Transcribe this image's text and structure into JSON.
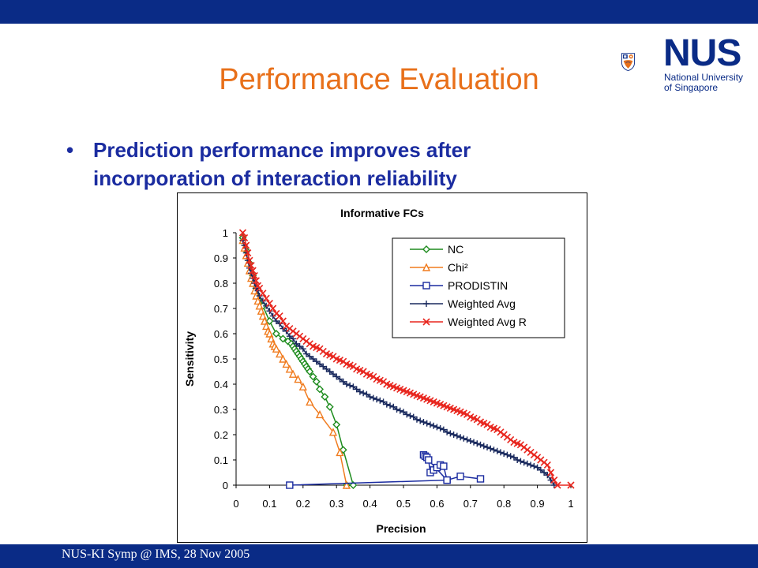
{
  "slide": {
    "title": "Performance Evaluation",
    "bullet_symbol": "•",
    "bullet_text": "Prediction performance improves after incorporation of interaction reliability",
    "footer": "NUS-KI Symp @ IMS, 28 Nov 2005",
    "logo": {
      "name": "NUS",
      "line1": "National University",
      "line2": "of Singapore"
    },
    "colors": {
      "bar": "#0a2b86",
      "title": "#e8701a",
      "bullet": "#1b2ca0"
    }
  },
  "chart_data": {
    "type": "line",
    "title": "Informative FCs",
    "xlabel": "Precision",
    "ylabel": "Sensitivity",
    "xlim": [
      0,
      1
    ],
    "ylim": [
      0,
      1
    ],
    "xticks": [
      "0",
      "0.1",
      "0.2",
      "0.3",
      "0.4",
      "0.5",
      "0.6",
      "0.7",
      "0.8",
      "0.9",
      "1"
    ],
    "yticks": [
      "0",
      "0.1",
      "0.2",
      "0.3",
      "0.4",
      "0.5",
      "0.6",
      "0.7",
      "0.8",
      "0.9",
      "1"
    ],
    "grid": false,
    "legend_position": "top-right",
    "series": [
      {
        "name": "NC",
        "color": "#1e8c1e",
        "marker": "diamond",
        "x": [
          0.02,
          0.03,
          0.04,
          0.05,
          0.06,
          0.08,
          0.1,
          0.12,
          0.14,
          0.155,
          0.165,
          0.17,
          0.175,
          0.18,
          0.185,
          0.19,
          0.195,
          0.2,
          0.205,
          0.21,
          0.215,
          0.22,
          0.23,
          0.24,
          0.25,
          0.265,
          0.28,
          0.3,
          0.32,
          0.35,
          0.33
        ],
        "y": [
          0.98,
          0.93,
          0.88,
          0.83,
          0.78,
          0.71,
          0.65,
          0.6,
          0.58,
          0.57,
          0.56,
          0.55,
          0.54,
          0.53,
          0.52,
          0.51,
          0.5,
          0.49,
          0.48,
          0.47,
          0.46,
          0.45,
          0.43,
          0.41,
          0.38,
          0.35,
          0.31,
          0.24,
          0.14,
          0.0,
          0.0
        ]
      },
      {
        "name": "Chi²",
        "color": "#f07b1e",
        "marker": "triangle",
        "x": [
          0.02,
          0.025,
          0.03,
          0.035,
          0.04,
          0.045,
          0.05,
          0.055,
          0.06,
          0.065,
          0.07,
          0.075,
          0.08,
          0.085,
          0.09,
          0.095,
          0.1,
          0.105,
          0.11,
          0.115,
          0.12,
          0.13,
          0.14,
          0.15,
          0.16,
          0.17,
          0.185,
          0.2,
          0.22,
          0.25,
          0.29,
          0.31,
          0.33
        ],
        "y": [
          0.97,
          0.94,
          0.91,
          0.88,
          0.85,
          0.82,
          0.8,
          0.77,
          0.75,
          0.73,
          0.71,
          0.69,
          0.67,
          0.65,
          0.63,
          0.61,
          0.6,
          0.58,
          0.56,
          0.55,
          0.54,
          0.52,
          0.5,
          0.48,
          0.46,
          0.44,
          0.42,
          0.39,
          0.33,
          0.28,
          0.21,
          0.13,
          0.0
        ]
      },
      {
        "name": "PRODISTIN",
        "color": "#1b2ca0",
        "marker": "square",
        "x": [
          0.16,
          0.63,
          0.56,
          0.565,
          0.57,
          0.575,
          0.58,
          0.59,
          0.6,
          0.61,
          0.62,
          0.63,
          0.67,
          0.73
        ],
        "y": [
          0.0,
          0.02,
          0.12,
          0.115,
          0.11,
          0.1,
          0.05,
          0.06,
          0.07,
          0.08,
          0.075,
          0.02,
          0.035,
          0.025
        ]
      },
      {
        "name": "Weighted Avg",
        "color": "#1a2a5e",
        "marker": "plus",
        "x": [
          0.02,
          0.025,
          0.03,
          0.035,
          0.04,
          0.045,
          0.05,
          0.055,
          0.06,
          0.065,
          0.07,
          0.08,
          0.09,
          0.1,
          0.11,
          0.12,
          0.13,
          0.14,
          0.15,
          0.16,
          0.17,
          0.18,
          0.19,
          0.2,
          0.21,
          0.22,
          0.23,
          0.24,
          0.25,
          0.26,
          0.27,
          0.28,
          0.29,
          0.3,
          0.31,
          0.32,
          0.33,
          0.34,
          0.35,
          0.36,
          0.37,
          0.38,
          0.39,
          0.4,
          0.41,
          0.42,
          0.43,
          0.44,
          0.45,
          0.46,
          0.47,
          0.48,
          0.49,
          0.5,
          0.51,
          0.52,
          0.53,
          0.54,
          0.55,
          0.56,
          0.57,
          0.58,
          0.59,
          0.6,
          0.61,
          0.62,
          0.63,
          0.64,
          0.65,
          0.66,
          0.67,
          0.68,
          0.69,
          0.7,
          0.71,
          0.72,
          0.73,
          0.74,
          0.75,
          0.76,
          0.77,
          0.78,
          0.79,
          0.8,
          0.81,
          0.82,
          0.83,
          0.84,
          0.85,
          0.86,
          0.87,
          0.88,
          0.89,
          0.9,
          0.91,
          0.92,
          0.93,
          0.94,
          0.95
        ],
        "y": [
          0.97,
          0.95,
          0.92,
          0.89,
          0.86,
          0.84,
          0.82,
          0.8,
          0.78,
          0.77,
          0.75,
          0.73,
          0.71,
          0.69,
          0.67,
          0.65,
          0.64,
          0.62,
          0.61,
          0.59,
          0.58,
          0.56,
          0.55,
          0.54,
          0.52,
          0.51,
          0.5,
          0.49,
          0.48,
          0.47,
          0.46,
          0.45,
          0.44,
          0.43,
          0.42,
          0.41,
          0.4,
          0.395,
          0.39,
          0.38,
          0.37,
          0.365,
          0.36,
          0.35,
          0.345,
          0.34,
          0.335,
          0.33,
          0.32,
          0.315,
          0.31,
          0.3,
          0.295,
          0.29,
          0.28,
          0.275,
          0.27,
          0.26,
          0.255,
          0.25,
          0.245,
          0.24,
          0.235,
          0.23,
          0.225,
          0.22,
          0.21,
          0.205,
          0.2,
          0.195,
          0.19,
          0.185,
          0.18,
          0.175,
          0.17,
          0.165,
          0.16,
          0.155,
          0.15,
          0.145,
          0.14,
          0.135,
          0.13,
          0.125,
          0.12,
          0.115,
          0.11,
          0.1,
          0.095,
          0.09,
          0.085,
          0.08,
          0.075,
          0.07,
          0.06,
          0.05,
          0.04,
          0.02,
          0.0
        ]
      },
      {
        "name": "Weighted Avg R",
        "color": "#e8261e",
        "marker": "x",
        "x": [
          0.02,
          0.025,
          0.03,
          0.035,
          0.04,
          0.045,
          0.05,
          0.055,
          0.06,
          0.065,
          0.07,
          0.08,
          0.09,
          0.1,
          0.11,
          0.12,
          0.13,
          0.14,
          0.15,
          0.16,
          0.17,
          0.18,
          0.19,
          0.2,
          0.21,
          0.22,
          0.23,
          0.24,
          0.25,
          0.26,
          0.27,
          0.28,
          0.29,
          0.3,
          0.31,
          0.32,
          0.33,
          0.34,
          0.35,
          0.36,
          0.37,
          0.38,
          0.39,
          0.4,
          0.41,
          0.42,
          0.43,
          0.44,
          0.45,
          0.46,
          0.47,
          0.48,
          0.49,
          0.5,
          0.51,
          0.52,
          0.53,
          0.54,
          0.55,
          0.56,
          0.57,
          0.58,
          0.59,
          0.6,
          0.61,
          0.62,
          0.63,
          0.64,
          0.65,
          0.66,
          0.67,
          0.68,
          0.69,
          0.7,
          0.71,
          0.72,
          0.73,
          0.74,
          0.75,
          0.76,
          0.77,
          0.78,
          0.79,
          0.8,
          0.81,
          0.82,
          0.83,
          0.84,
          0.85,
          0.86,
          0.87,
          0.88,
          0.89,
          0.9,
          0.91,
          0.92,
          0.93,
          0.94,
          0.95,
          0.96,
          1.0
        ],
        "y": [
          1.0,
          0.98,
          0.95,
          0.92,
          0.89,
          0.87,
          0.85,
          0.83,
          0.81,
          0.79,
          0.78,
          0.76,
          0.74,
          0.72,
          0.7,
          0.68,
          0.67,
          0.65,
          0.63,
          0.62,
          0.61,
          0.6,
          0.59,
          0.58,
          0.57,
          0.56,
          0.55,
          0.545,
          0.54,
          0.53,
          0.52,
          0.515,
          0.51,
          0.5,
          0.495,
          0.49,
          0.48,
          0.475,
          0.47,
          0.46,
          0.455,
          0.45,
          0.44,
          0.435,
          0.43,
          0.42,
          0.415,
          0.41,
          0.4,
          0.395,
          0.39,
          0.385,
          0.38,
          0.375,
          0.37,
          0.365,
          0.36,
          0.355,
          0.35,
          0.345,
          0.34,
          0.335,
          0.33,
          0.325,
          0.32,
          0.315,
          0.31,
          0.305,
          0.3,
          0.295,
          0.29,
          0.285,
          0.28,
          0.27,
          0.265,
          0.26,
          0.25,
          0.245,
          0.24,
          0.23,
          0.225,
          0.22,
          0.21,
          0.2,
          0.19,
          0.18,
          0.17,
          0.165,
          0.16,
          0.15,
          0.14,
          0.13,
          0.12,
          0.11,
          0.1,
          0.09,
          0.08,
          0.05,
          0.02,
          0.0,
          0.0
        ]
      }
    ]
  }
}
